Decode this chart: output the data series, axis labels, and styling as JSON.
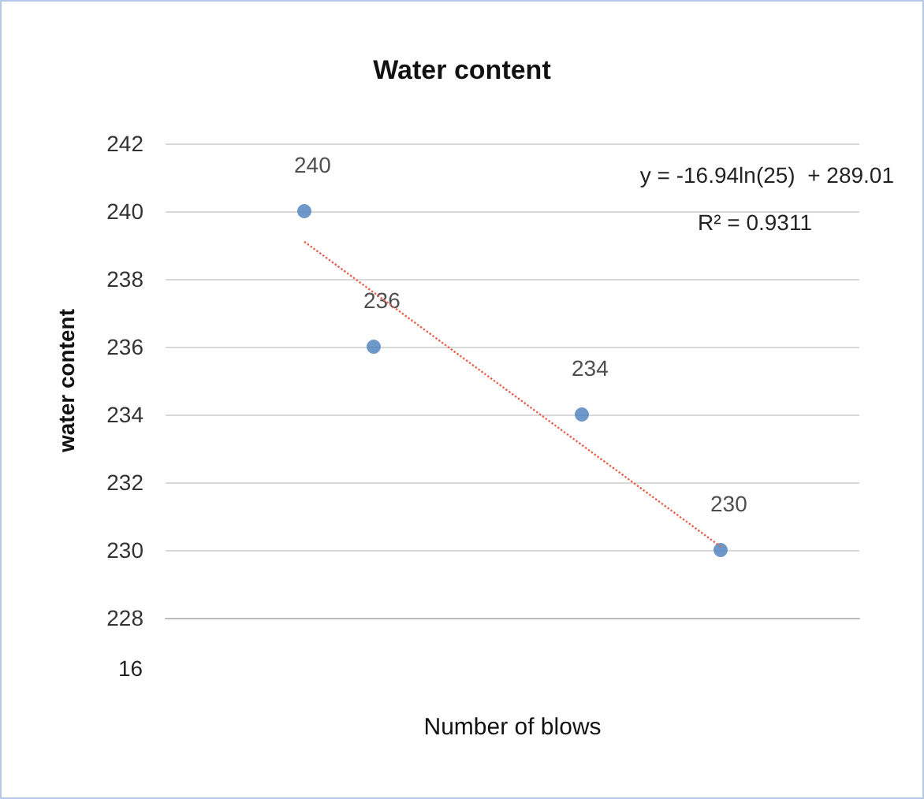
{
  "chart_data": {
    "type": "scatter",
    "title": "Water content",
    "xlabel": "Number of blows",
    "ylabel": "water content",
    "data_labels": true,
    "marker": "circle",
    "categories": [
      null,
      null,
      null,
      null,
      null,
      null,
      null,
      null,
      null,
      null,
      null
    ],
    "series": [
      {
        "color": "#4a7ebb",
        "values": [
          null,
          null,
          240,
          236,
          null,
          null,
          234,
          null,
          230,
          null,
          null
        ]
      },
      {
        "type": "line",
        "color": "#e8604c",
        "line_style": "dotted",
        "marker": "none",
        "values": [
          null,
          null,
          239.1,
          237.6,
          236.1,
          234.6,
          233.1,
          231.6,
          230.1,
          null,
          null
        ],
        "value_labels": [
          null,
          null,
          null,
          null,
          null,
          null,
          null,
          null,
          null,
          null,
          null
        ]
      }
    ],
    "annotations": [
      "y = -16.94ln(25)  + 289.01",
      "R² = 0.9311",
      "16"
    ],
    "ylim": [
      228,
      242
    ],
    "yticks": [
      228,
      230,
      232,
      234,
      236,
      238,
      240,
      242
    ],
    "grid": "y"
  }
}
